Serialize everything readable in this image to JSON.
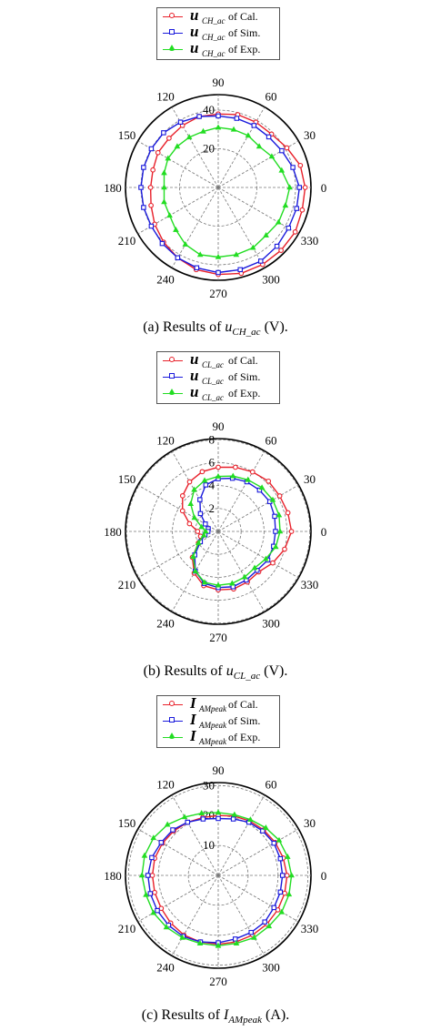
{
  "chart_data": [
    {
      "type": "polar-line",
      "angle_ticks": [
        "0",
        "30",
        "60",
        "90",
        "120",
        "150",
        "180",
        "210",
        "240",
        "270",
        "300",
        "330"
      ],
      "radial_ticks": [
        "20",
        "40"
      ],
      "radial_max": 48,
      "legend": [
        {
          "symbol": "u",
          "sub": "CH_ac",
          "text": "of Cal.",
          "color": "#e8202a",
          "marker": "circle"
        },
        {
          "symbol": "u",
          "sub": "CH_ac",
          "text": "of Sim.",
          "color": "#1a1adc",
          "marker": "square"
        },
        {
          "symbol": "u",
          "sub": "CH_ac",
          "text": "of Exp.",
          "color": "#22dd22",
          "marker": "triangle"
        }
      ],
      "series": [
        {
          "color": "#e8202a",
          "marker": "circle",
          "angles": [
            0,
            15,
            30,
            45,
            60,
            75,
            90,
            105,
            120,
            135,
            150,
            165,
            180,
            195,
            210,
            225,
            240,
            255,
            270,
            285,
            300,
            315,
            330,
            345
          ],
          "values": [
            45,
            44,
            41,
            39,
            39,
            39,
            38,
            38,
            37,
            36,
            36,
            35,
            35,
            36,
            38,
            40,
            42,
            44,
            45,
            46,
            46,
            46,
            46,
            45
          ]
        },
        {
          "color": "#1a1adc",
          "marker": "square",
          "angles": [
            0,
            15,
            30,
            45,
            60,
            75,
            90,
            105,
            120,
            135,
            150,
            165,
            180,
            195,
            210,
            225,
            240,
            255,
            270,
            285,
            300,
            315,
            330,
            345
          ],
          "values": [
            42,
            40,
            38,
            37,
            37,
            37,
            37,
            38,
            39,
            40,
            40,
            40,
            40,
            40,
            40,
            41,
            42,
            43,
            44,
            44,
            44,
            43,
            42,
            42
          ]
        },
        {
          "color": "#22dd22",
          "marker": "triangle",
          "angles": [
            0,
            15,
            30,
            45,
            60,
            75,
            90,
            105,
            120,
            135,
            150,
            165,
            180,
            195,
            210,
            225,
            240,
            255,
            270,
            285,
            300,
            315,
            330,
            345
          ],
          "values": [
            37,
            34,
            32,
            30,
            31,
            31,
            31,
            30,
            30,
            30,
            30,
            29,
            28,
            29,
            29,
            31,
            34,
            36,
            36,
            36,
            36,
            35,
            36,
            36
          ]
        }
      ],
      "caption": {
        "prefix": "(a) Results of ",
        "var": "u",
        "sub": "CH_ac",
        "suffix": " (V)."
      }
    },
    {
      "type": "polar-line",
      "angle_ticks": [
        "0",
        "30",
        "60",
        "90",
        "120",
        "150",
        "180",
        "210",
        "240",
        "270",
        "300",
        "330"
      ],
      "radial_ticks": [
        "2",
        "4",
        "6",
        "8"
      ],
      "radial_max": 8.1,
      "legend": [
        {
          "symbol": "u",
          "sub": "CL_ac",
          "text": "of Cal.",
          "color": "#e8202a",
          "marker": "circle"
        },
        {
          "symbol": "u",
          "sub": "CL_ac",
          "text": "of Sim.",
          "color": "#1a1adc",
          "marker": "square"
        },
        {
          "symbol": "u",
          "sub": "CL_ac",
          "text": "of Exp.",
          "color": "#22dd22",
          "marker": "triangle"
        }
      ],
      "series": [
        {
          "color": "#e8202a",
          "marker": "circle",
          "angles": [
            0,
            15,
            30,
            45,
            60,
            75,
            90,
            105,
            120,
            135,
            150,
            165,
            180,
            195,
            210,
            225,
            240,
            255,
            270,
            285,
            300,
            315,
            330,
            345
          ],
          "values": [
            6.4,
            6.3,
            6.2,
            6.2,
            6.0,
            5.8,
            5.6,
            5.4,
            5.0,
            4.4,
            3.6,
            2.6,
            1.8,
            1.6,
            2.0,
            3.2,
            4.2,
            4.9,
            5.1,
            5.2,
            5.1,
            5.0,
            5.5,
            6.0
          ]
        },
        {
          "color": "#1a1adc",
          "marker": "square",
          "angles": [
            0,
            15,
            30,
            45,
            60,
            75,
            90,
            105,
            120,
            135,
            150,
            165,
            180,
            195,
            210,
            225,
            240,
            255,
            270,
            285,
            300,
            315,
            330,
            345
          ],
          "values": [
            5.0,
            5.1,
            5.2,
            5.1,
            5.0,
            4.8,
            4.6,
            4.2,
            3.2,
            2.2,
            1.3,
            0.9,
            0.9,
            1.2,
            1.8,
            2.9,
            4.0,
            4.7,
            4.9,
            5.0,
            4.9,
            4.8,
            5.0,
            5.0
          ]
        },
        {
          "color": "#22dd22",
          "marker": "triangle",
          "angles": [
            0,
            15,
            30,
            45,
            60,
            75,
            90,
            105,
            120,
            135,
            150,
            165,
            180,
            195,
            210,
            225,
            240,
            255,
            270,
            285,
            300,
            315,
            330,
            345
          ],
          "values": [
            5.4,
            5.5,
            5.5,
            5.4,
            5.2,
            5.0,
            4.8,
            4.6,
            4.2,
            3.4,
            2.4,
            1.5,
            1.1,
            1.3,
            2.0,
            3.1,
            4.0,
            4.6,
            4.7,
            4.7,
            4.6,
            4.5,
            4.8,
            5.2
          ]
        }
      ],
      "caption": {
        "prefix": "(b) Results of ",
        "var": "u",
        "sub": "CL_ac",
        "suffix": " (V)."
      }
    },
    {
      "type": "polar-line",
      "angle_ticks": [
        "0",
        "30",
        "60",
        "90",
        "120",
        "150",
        "180",
        "210",
        "240",
        "270",
        "300",
        "330"
      ],
      "radial_ticks": [
        "10",
        "20",
        "30"
      ],
      "radial_max": 31,
      "legend": [
        {
          "symbol": "I",
          "sub": "AMpeak",
          "text": "of Cal.",
          "color": "#e8202a",
          "marker": "circle"
        },
        {
          "symbol": "I",
          "sub": "AMpeak",
          "text": "of Sim.",
          "color": "#1a1adc",
          "marker": "square"
        },
        {
          "symbol": "I",
          "sub": "AMpeak",
          "text": "of Exp.",
          "color": "#22dd22",
          "marker": "triangle"
        }
      ],
      "series": [
        {
          "color": "#e8202a",
          "marker": "circle",
          "angles": [
            0,
            15,
            30,
            45,
            60,
            75,
            90,
            105,
            120,
            135,
            150,
            165,
            180,
            195,
            210,
            225,
            240,
            255,
            270,
            285,
            300,
            315,
            330,
            345
          ],
          "values": [
            23,
            22.5,
            22,
            21.5,
            21,
            20.5,
            20,
            20,
            20.5,
            21,
            21.5,
            22,
            22,
            22,
            22,
            22.5,
            23,
            23,
            23,
            23,
            23,
            23,
            23,
            23
          ]
        },
        {
          "color": "#1a1adc",
          "marker": "square",
          "angles": [
            0,
            15,
            30,
            45,
            60,
            75,
            90,
            105,
            120,
            135,
            150,
            165,
            180,
            195,
            210,
            225,
            240,
            255,
            270,
            285,
            300,
            315,
            330,
            345
          ],
          "values": [
            21.5,
            21.5,
            21.5,
            21,
            20.5,
            19.5,
            19,
            19.5,
            20.5,
            21.5,
            22,
            23,
            23.5,
            23.5,
            23.5,
            23.5,
            23.5,
            23,
            22.5,
            22,
            22,
            22,
            21.5,
            21.5
          ]
        },
        {
          "color": "#22dd22",
          "marker": "triangle",
          "angles": [
            0,
            15,
            30,
            45,
            60,
            75,
            90,
            105,
            120,
            135,
            150,
            165,
            180,
            195,
            210,
            225,
            240,
            255,
            270,
            285,
            300,
            315,
            330,
            345
          ],
          "values": [
            24.5,
            24,
            23.5,
            22.5,
            21.5,
            21,
            21,
            21.5,
            22.5,
            24,
            25,
            25.5,
            25.5,
            25,
            25,
            24.5,
            24,
            23.5,
            23.5,
            23.5,
            24,
            24,
            24.5,
            24.5
          ]
        }
      ],
      "caption": {
        "prefix": "(c) Results of ",
        "var": "I",
        "sub": "AMpeak",
        "suffix": " (A)."
      }
    }
  ]
}
